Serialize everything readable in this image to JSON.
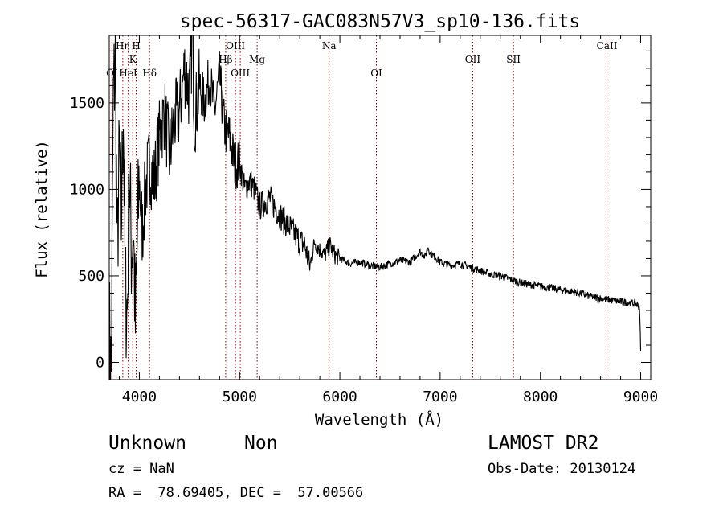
{
  "chart_data": {
    "type": "line",
    "title": "spec-56317-GAC083N57V3_sp10-136.fits",
    "xlabel": "Wavelength (Å)",
    "ylabel": "Flux (relative)",
    "xlim": [
      3700,
      9100
    ],
    "ylim": [
      -100,
      1890
    ],
    "xticks": [
      4000,
      5000,
      6000,
      7000,
      8000,
      9000
    ],
    "yticks": [
      0,
      500,
      1000,
      1500
    ],
    "line_color": "#000000",
    "marker_color": "#8b0000",
    "spectral_lines": [
      {
        "label": "OI",
        "x": 3727,
        "row": 3
      },
      {
        "label": "Hη",
        "x": 3835,
        "row": 1
      },
      {
        "label": "HeI",
        "x": 3889,
        "row": 3
      },
      {
        "label": "K",
        "x": 3934,
        "row": 2
      },
      {
        "label": "H",
        "x": 3969,
        "row": 1
      },
      {
        "label": "Hδ",
        "x": 4102,
        "row": 3
      },
      {
        "label": "Hβ",
        "x": 4861,
        "row": 2
      },
      {
        "label": "OIII",
        "x": 4959,
        "row": 1
      },
      {
        "label": "OIII",
        "x": 5007,
        "row": 3
      },
      {
        "label": "Mg",
        "x": 5175,
        "row": 2
      },
      {
        "label": "Na",
        "x": 5893,
        "row": 1
      },
      {
        "label": "OI",
        "x": 6364,
        "row": 3
      },
      {
        "label": "OII",
        "x": 7325,
        "row": 2
      },
      {
        "label": "SII",
        "x": 7731,
        "row": 2
      },
      {
        "label": "CaII",
        "x": 8664,
        "row": 1
      }
    ],
    "series": [
      {
        "x": [
          3700,
          3720,
          3740,
          3760,
          3780,
          3800,
          3820,
          3840,
          3860,
          3880,
          3900,
          3920,
          3940,
          3960,
          3980,
          4000,
          4030,
          4060,
          4100,
          4150,
          4200,
          4250,
          4300,
          4350,
          4400,
          4450,
          4500,
          4530,
          4550,
          4600,
          4650,
          4700,
          4750,
          4800,
          4850,
          4900,
          4950,
          5000,
          5050,
          5100,
          5150,
          5200,
          5300,
          5400,
          5500,
          5600,
          5650,
          5700,
          5750,
          5800,
          5850,
          5900,
          5950,
          6000,
          6100,
          6200,
          6300,
          6400,
          6500,
          6600,
          6700,
          6800,
          6850,
          6880,
          6900,
          6950,
          7000,
          7100,
          7200,
          7300,
          7400,
          7500,
          7600,
          7700,
          7800,
          7900,
          8000,
          8100,
          8200,
          8300,
          8400,
          8500,
          8600,
          8700,
          8800,
          8900,
          8950,
          8990,
          9000
        ],
        "y": [
          200,
          -80,
          1500,
          1750,
          600,
          1200,
          800,
          1500,
          400,
          300,
          1100,
          650,
          800,
          200,
          700,
          1050,
          750,
          1000,
          1150,
          1050,
          1300,
          1450,
          1200,
          1400,
          1450,
          1700,
          1550,
          1880,
          1400,
          1600,
          1500,
          1650,
          1450,
          1650,
          1350,
          1300,
          1150,
          1150,
          1000,
          1050,
          1000,
          900,
          950,
          850,
          780,
          700,
          680,
          550,
          700,
          650,
          620,
          680,
          620,
          600,
          570,
          580,
          560,
          550,
          570,
          590,
          580,
          640,
          610,
          670,
          630,
          610,
          580,
          560,
          570,
          550,
          530,
          510,
          500,
          480,
          460,
          450,
          440,
          430,
          420,
          410,
          400,
          380,
          370,
          360,
          350,
          345,
          340,
          320,
          60
        ]
      }
    ]
  },
  "info": {
    "object_class": "Unknown",
    "subclass": "Non",
    "redshift": "cz = NaN",
    "coords": "RA =  78.69405, DEC =  57.00566",
    "survey": "LAMOST DR2",
    "obs_date": "Obs-Date: 20130124"
  }
}
